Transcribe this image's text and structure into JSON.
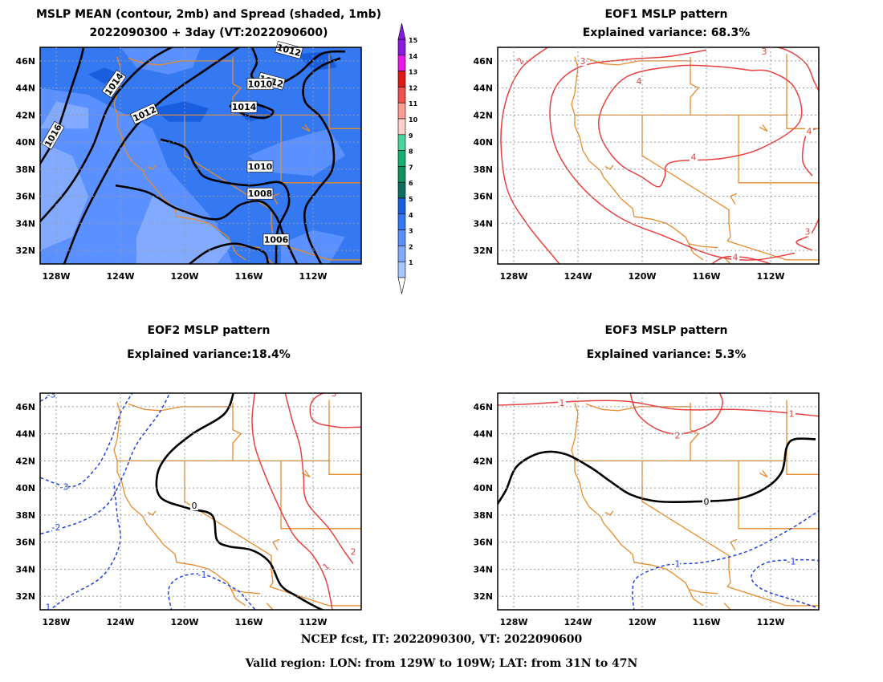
{
  "footer": {
    "line1": "NCEP fcst, IT: 2022090300, VT: 2022090600",
    "line2": "Valid region: LON: from 129W to 109W; LAT: from 31N to 47N"
  },
  "colors": {
    "spread_levels": [
      "#c8dcff",
      "#a6c4ff",
      "#82aaff",
      "#5a90ff",
      "#3478f2",
      "#1a5ee0",
      "#0d6d5f",
      "#12905f",
      "#18b070",
      "#48d49c",
      "#ffd0c8",
      "#ff9c94",
      "#f05050",
      "#e01818",
      "#e818e8",
      "#8a1ae0"
    ],
    "state_border": "#e88a2a",
    "mslp_contour": "#000000",
    "positive_contour": "#e84040",
    "negative_contour": "#2040e0",
    "grid": "#9a9a9a"
  },
  "chart_data": [
    {
      "id": "panel1",
      "type": "heatmap",
      "title": "MSLP MEAN (contour, 2mb) and Spread (shaded, 1mb)",
      "subtitle": "2022090300 + 3day (VT:2022090600)",
      "xlim": [
        -129,
        -109
      ],
      "ylim": [
        31,
        47
      ],
      "x_ticks": [
        "128W",
        "124W",
        "120W",
        "116W",
        "112W"
      ],
      "y_ticks": [
        "32N",
        "34N",
        "36N",
        "38N",
        "40N",
        "42N",
        "44N",
        "46N"
      ],
      "colorbar_labels": [
        "1",
        "2",
        "3",
        "4",
        "5",
        "6",
        "7",
        "8",
        "9",
        "10",
        "11",
        "12",
        "13",
        "14",
        "15"
      ],
      "contour_labels": [
        "1016",
        "1014",
        "1012",
        "1012",
        "1014",
        "1010",
        "1012",
        "1010",
        "1008",
        "1006"
      ],
      "contour_label_values": [
        1016,
        1014,
        1012,
        1012,
        1014,
        1010,
        1012,
        1010,
        1008,
        1006
      ]
    },
    {
      "id": "panel2",
      "type": "line",
      "title": "EOF1 MSLP pattern",
      "subtitle": "Explained variance: 68.3%",
      "explained_variance_percent": 68.3,
      "xlim": [
        -129,
        -109
      ],
      "ylim": [
        31,
        47
      ],
      "x_ticks": [
        "128W",
        "124W",
        "120W",
        "116W",
        "112W"
      ],
      "y_ticks": [
        "32N",
        "34N",
        "36N",
        "38N",
        "40N",
        "42N",
        "44N",
        "46N"
      ],
      "contour_labels": [
        "2",
        "3",
        "4",
        "4",
        "3",
        "4",
        "3",
        "4"
      ]
    },
    {
      "id": "panel3",
      "type": "line",
      "title": "EOF2 MSLP pattern",
      "subtitle": "Explained variance:18.4%",
      "explained_variance_percent": 18.4,
      "xlim": [
        -129,
        -109
      ],
      "ylim": [
        31,
        47
      ],
      "x_ticks": [
        "128W",
        "124W",
        "120W",
        "116W",
        "112W"
      ],
      "y_ticks": [
        "32N",
        "34N",
        "36N",
        "38N",
        "40N",
        "42N",
        "44N",
        "46N"
      ],
      "contour_labels": [
        "-3",
        "-3",
        "-2",
        "-1",
        "0",
        "3",
        "1",
        "2",
        "1"
      ]
    },
    {
      "id": "panel4",
      "type": "line",
      "title": "EOF3 MSLP pattern",
      "subtitle": "Explained variance: 5.3%",
      "explained_variance_percent": 5.3,
      "xlim": [
        -129,
        -109
      ],
      "ylim": [
        31,
        47
      ],
      "x_ticks": [
        "128W",
        "124W",
        "120W",
        "116W",
        "112W"
      ],
      "y_ticks": [
        "32N",
        "34N",
        "36N",
        "38N",
        "40N",
        "42N",
        "44N",
        "46N"
      ],
      "contour_labels": [
        "1",
        "1",
        "2",
        "0",
        "-1",
        "-1"
      ]
    }
  ]
}
